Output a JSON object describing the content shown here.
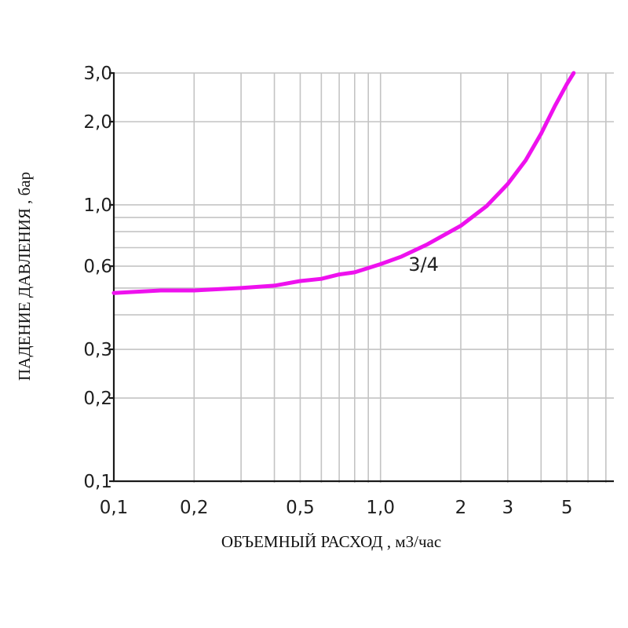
{
  "chart_data": {
    "type": "line",
    "x_scale": "log",
    "y_scale": "log",
    "xlabel": "ОБЪЕМНЫЙ РАСХОД , м3/час",
    "ylabel": "ПАДЕНИЕ ДАВЛЕНИЯ , бар",
    "xlim": [
      0.1,
      7.5
    ],
    "ylim": [
      0.1,
      3.0
    ],
    "grid": true,
    "x_gridlines": [
      0.2,
      0.3,
      0.4,
      0.5,
      0.6,
      0.7,
      0.8,
      0.9,
      1.0,
      2,
      3,
      4,
      5,
      6,
      7
    ],
    "y_gridlines": [
      0.2,
      0.3,
      0.4,
      0.5,
      0.6,
      0.7,
      0.8,
      0.9,
      1.0,
      2.0,
      3.0
    ],
    "x_ticks": [
      {
        "value": 0.1,
        "label": "0,1"
      },
      {
        "value": 0.2,
        "label": "0,2"
      },
      {
        "value": 0.5,
        "label": "0,5"
      },
      {
        "value": 1.0,
        "label": "1,0"
      },
      {
        "value": 2,
        "label": "2"
      },
      {
        "value": 3,
        "label": "3"
      },
      {
        "value": 5,
        "label": "5"
      }
    ],
    "y_ticks": [
      {
        "value": 0.1,
        "label": "0,1"
      },
      {
        "value": 0.2,
        "label": "0,2"
      },
      {
        "value": 0.3,
        "label": "0,3"
      },
      {
        "value": 0.6,
        "label": "0,6"
      },
      {
        "value": 1.0,
        "label": "1,0"
      },
      {
        "value": 2.0,
        "label": "2,0"
      },
      {
        "value": 3.0,
        "label": "3,0"
      }
    ],
    "series": [
      {
        "name": "3/4",
        "color": "#ee11ee",
        "x": [
          0.1,
          0.15,
          0.2,
          0.3,
          0.4,
          0.5,
          0.6,
          0.7,
          0.8,
          1.0,
          1.2,
          1.5,
          2.0,
          2.5,
          3.0,
          3.5,
          4.0,
          4.5,
          5.0,
          5.3
        ],
        "y": [
          0.48,
          0.49,
          0.49,
          0.5,
          0.51,
          0.53,
          0.54,
          0.56,
          0.57,
          0.61,
          0.65,
          0.72,
          0.84,
          0.99,
          1.19,
          1.45,
          1.81,
          2.27,
          2.74,
          3.0
        ]
      }
    ]
  }
}
